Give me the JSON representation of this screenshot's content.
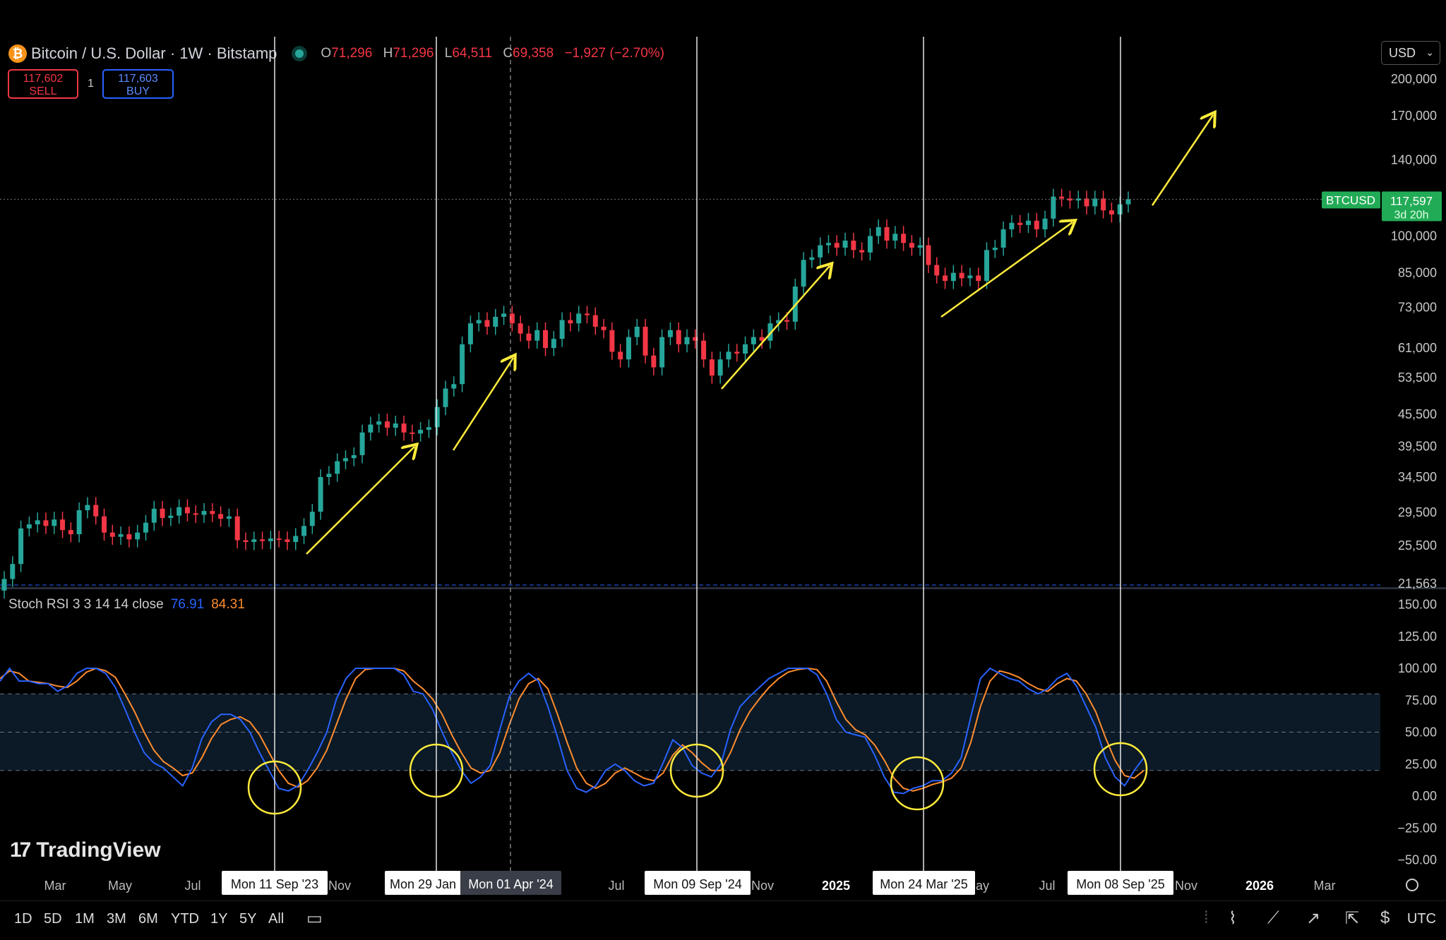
{
  "header": {
    "symbol": "Bitcoin / U.S. Dollar · 1W · Bitstamp",
    "open_label": "O",
    "open": "71,296",
    "high_label": "H",
    "high": "71,296",
    "low_label": "L",
    "low": "64,511",
    "close_label": "C",
    "close": "69,358",
    "change": "−1,927 (−2.70%)"
  },
  "trade": {
    "sell_price": "117,602",
    "sell_label": "SELL",
    "qty": "1",
    "buy_price": "117,603",
    "buy_label": "BUY"
  },
  "currency": "USD",
  "indicator": {
    "name": "Stoch RSI 3 3 14 14 close",
    "k_value": "76.91",
    "d_value": "84.31"
  },
  "brand": "TradingView",
  "toolbar": {
    "timeframes": [
      "1D",
      "5D",
      "1M",
      "3M",
      "6M",
      "YTD",
      "1Y",
      "5Y",
      "All"
    ],
    "timezone": "UTC"
  },
  "colors": {
    "up": "#26a69a",
    "down": "#f23645",
    "k_line": "#2962ff",
    "d_line": "#ff8c2f",
    "arrows": "#ffeb3b",
    "price_tag": "#22ab56"
  },
  "chart_data": [
    {
      "type": "candlestick",
      "title": "Bitcoin / U.S. Dollar · 1W · Bitstamp",
      "y_scale": "log",
      "y_ticks": [
        "200,000",
        "170,000",
        "140,000",
        "100,000",
        "85,000",
        "73,000",
        "61,000",
        "53,500",
        "45,500",
        "39,500",
        "34,500",
        "29,500",
        "25,500",
        "21,563"
      ],
      "x_ticks": [
        "Mar",
        "May",
        "Jul",
        "Sep",
        "Nov",
        "Jan",
        "Apr",
        "Jul",
        "Sep",
        "Nov",
        "2025",
        "Mar",
        "May",
        "Jul",
        "Sep",
        "Nov",
        "2026",
        "Mar"
      ],
      "highlighted_dates": [
        "Mon 11 Sep '23",
        "Mon 29 Jan",
        "Mon 01 Apr '24",
        "Mon 09 Sep '24",
        "Mon 24 Mar '25",
        "Mon 08 Sep '25"
      ],
      "last_price": {
        "label": "BTCUSD",
        "value": "117,597",
        "countdown": "3d 20h"
      },
      "weekly_closes": [
        22000,
        23500,
        27500,
        28000,
        28500,
        27800,
        28600,
        27300,
        26800,
        29800,
        30500,
        29000,
        27000,
        26500,
        26800,
        26200,
        27000,
        28200,
        30000,
        28800,
        29100,
        30200,
        29400,
        29200,
        29700,
        29300,
        28700,
        29000,
        26100,
        25900,
        26200,
        26000,
        26300,
        26200,
        25900,
        26600,
        27800,
        29600,
        34500,
        35000,
        37000,
        37500,
        38000,
        42000,
        43500,
        44100,
        42900,
        43700,
        42000,
        41800,
        42500,
        43000,
        47000,
        51000,
        52000,
        62000,
        68000,
        69000,
        67000,
        70000,
        71000,
        68000,
        65000,
        63000,
        66000,
        61000,
        63500,
        69000,
        68000,
        71000,
        70500,
        67000,
        66000,
        60000,
        58000,
        64000,
        67000,
        59000,
        56000,
        64000,
        66000,
        62000,
        64000,
        63000,
        58000,
        54000,
        58000,
        60000,
        59500,
        62000,
        64000,
        63000,
        68000,
        69000,
        68500,
        80000,
        90000,
        91000,
        96000,
        97000,
        95000,
        98000,
        94000,
        93000,
        100000,
        104000,
        98000,
        101000,
        97000,
        95000,
        96000,
        88000,
        84000,
        82000,
        85000,
        83000,
        84000,
        82000,
        94000,
        95000,
        103000,
        106000,
        105000,
        107000,
        103000,
        108000,
        119000,
        118000,
        117000,
        118000,
        114000,
        118000,
        112000,
        110000,
        115000,
        117597
      ],
      "overlay": "yellow trend arrows"
    },
    {
      "type": "line",
      "title": "Stoch RSI 3 3 14 14 close",
      "y_ticks": [
        "150.00",
        "125.00",
        "100.00",
        "75.00",
        "50.00",
        "25.00",
        "0.00",
        "−25.00",
        "−50.00"
      ],
      "bands": {
        "upper": 80,
        "middle": 50,
        "lower": 20
      },
      "series": [
        {
          "name": "K",
          "values": [
            90,
            100,
            90,
            90,
            88,
            88,
            82,
            86,
            96,
            100,
            100,
            96,
            85,
            68,
            50,
            34,
            26,
            22,
            15,
            8,
            22,
            45,
            58,
            64,
            64,
            60,
            50,
            34,
            20,
            6,
            4,
            8,
            20,
            34,
            50,
            76,
            92,
            100,
            100,
            100,
            100,
            100,
            95,
            82,
            80,
            68,
            50,
            34,
            20,
            10,
            15,
            24,
            52,
            78,
            90,
            96,
            90,
            70,
            46,
            20,
            6,
            3,
            8,
            20,
            25,
            20,
            12,
            8,
            10,
            26,
            44,
            38,
            24,
            18,
            15,
            25,
            52,
            70,
            78,
            85,
            92,
            96,
            100,
            100,
            100,
            95,
            80,
            60,
            50,
            48,
            46,
            32,
            15,
            3,
            2,
            6,
            8,
            12,
            12,
            18,
            30,
            62,
            92,
            100,
            96,
            92,
            90,
            84,
            80,
            84,
            92,
            96,
            86,
            70,
            54,
            30,
            15,
            8,
            20,
            30
          ]
        },
        {
          "name": "D",
          "values": [
            92,
            98,
            96,
            90,
            89,
            88,
            86,
            85,
            90,
            97,
            100,
            98,
            93,
            80,
            66,
            50,
            36,
            27,
            22,
            16,
            18,
            30,
            45,
            56,
            60,
            62,
            58,
            48,
            34,
            20,
            10,
            7,
            12,
            22,
            36,
            56,
            76,
            92,
            99,
            100,
            100,
            100,
            98,
            90,
            84,
            76,
            64,
            48,
            34,
            22,
            18,
            20,
            34,
            56,
            76,
            88,
            92,
            84,
            64,
            42,
            22,
            10,
            6,
            10,
            18,
            22,
            18,
            14,
            12,
            18,
            32,
            40,
            34,
            26,
            20,
            20,
            34,
            52,
            66,
            76,
            85,
            92,
            97,
            99,
            100,
            99,
            90,
            74,
            60,
            52,
            48,
            40,
            28,
            14,
            6,
            4,
            6,
            9,
            11,
            14,
            22,
            42,
            70,
            90,
            98,
            96,
            93,
            88,
            84,
            82,
            88,
            92,
            90,
            80,
            66,
            46,
            28,
            16,
            14,
            20
          ]
        }
      ]
    }
  ]
}
